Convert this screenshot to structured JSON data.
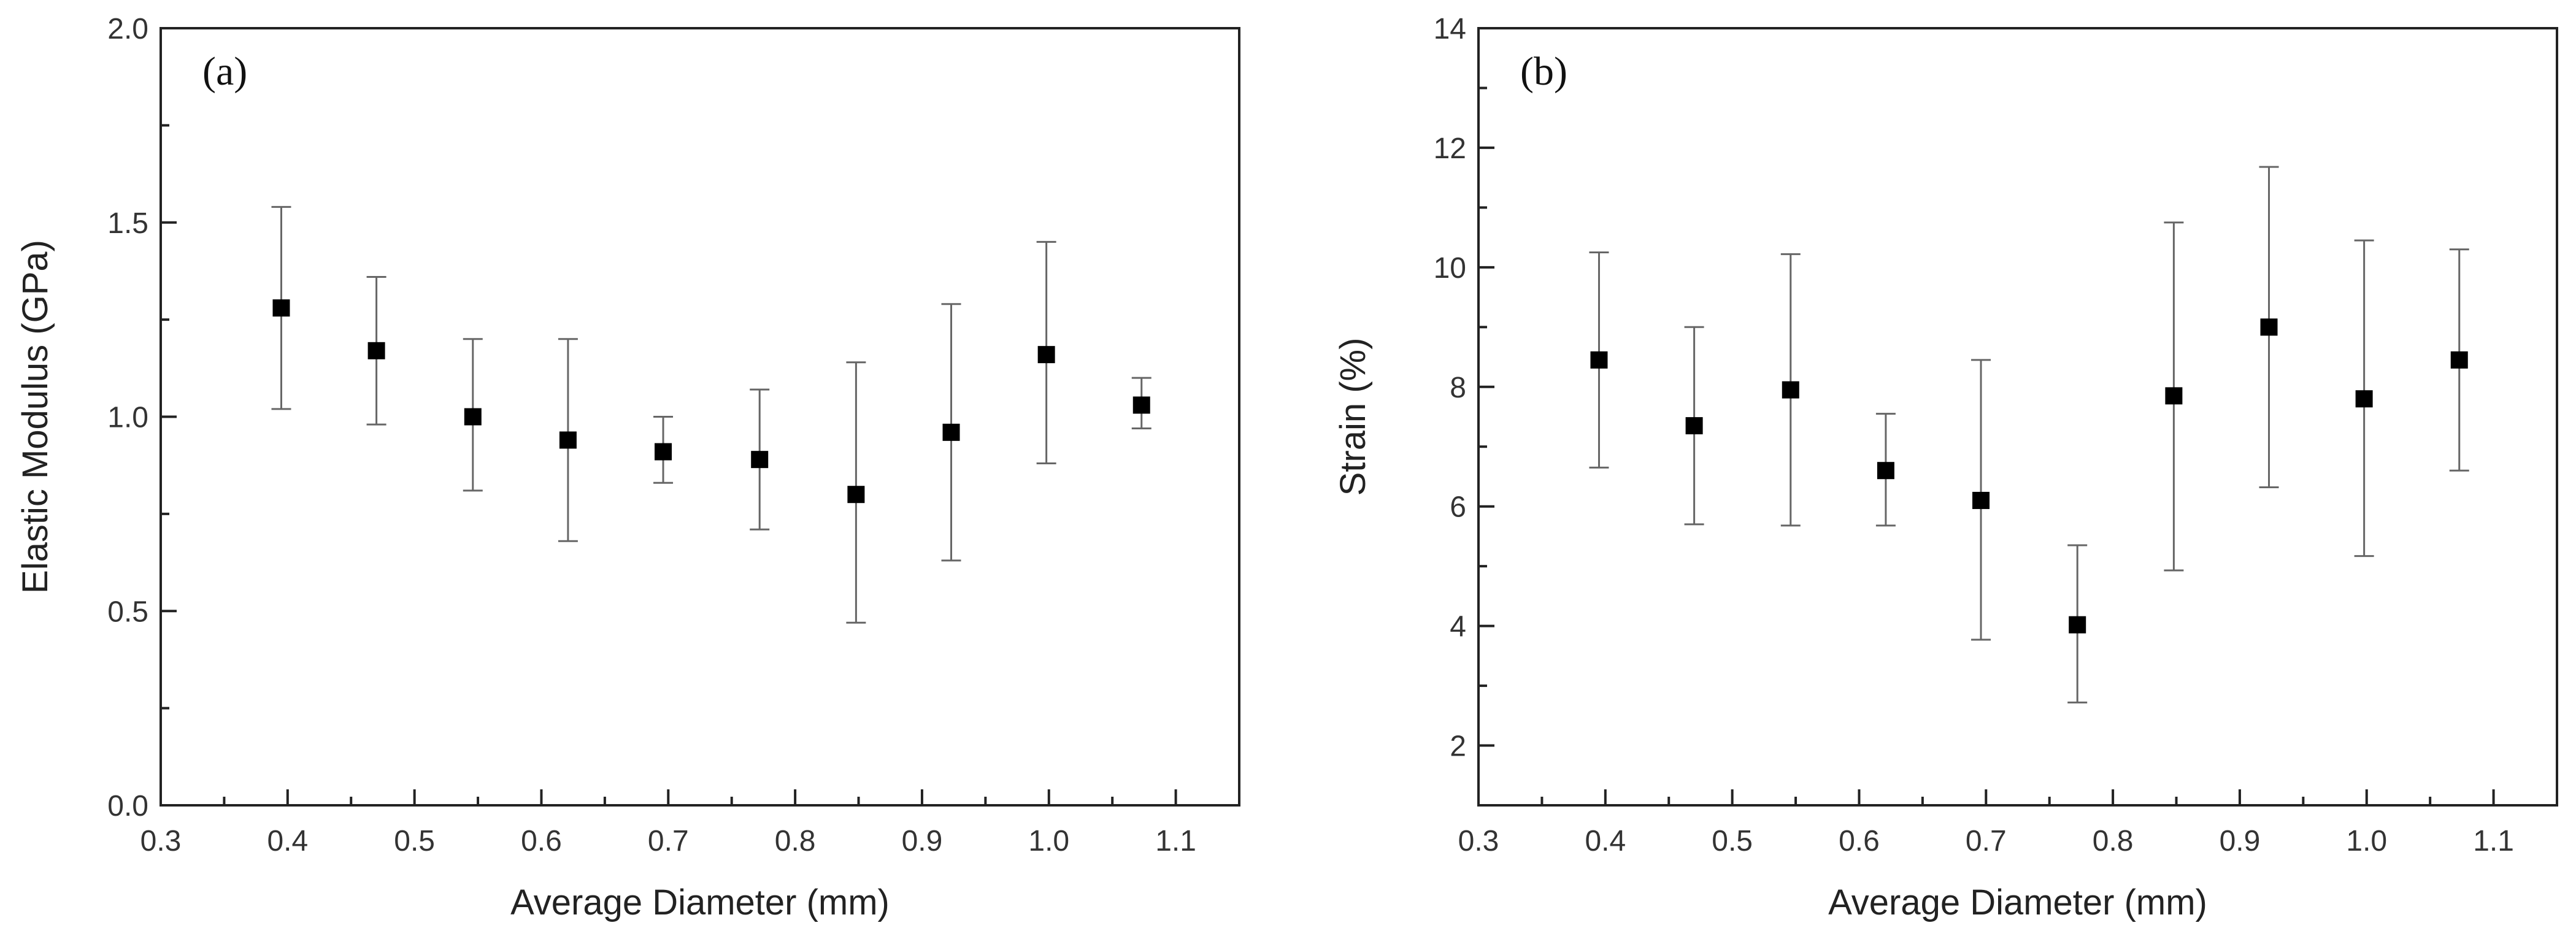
{
  "chart_data": [
    {
      "type": "scatter",
      "panel_label": "(a)",
      "xlabel": "Average Diameter (mm)",
      "ylabel": "Elastic Modulus (GPa)",
      "xlim": [
        0.3,
        1.15
      ],
      "ylim": [
        0.0,
        2.0
      ],
      "xticks": [
        "0.3",
        "0.4",
        "0.5",
        "0.6",
        "0.7",
        "0.8",
        "0.9",
        "1.0",
        "1.1"
      ],
      "yticks": [
        "0.0",
        "0.5",
        "1.0",
        "1.5",
        "2.0"
      ],
      "grid": false,
      "marker_color": "#000000",
      "error_bar_color": "#666666",
      "points": [
        {
          "x": 0.395,
          "y": 1.28,
          "lo": 1.02,
          "hi": 1.54
        },
        {
          "x": 0.47,
          "y": 1.17,
          "lo": 0.98,
          "hi": 1.36
        },
        {
          "x": 0.546,
          "y": 1.0,
          "lo": 0.81,
          "hi": 1.2
        },
        {
          "x": 0.621,
          "y": 0.94,
          "lo": 0.68,
          "hi": 1.2
        },
        {
          "x": 0.696,
          "y": 0.91,
          "lo": 0.83,
          "hi": 1.0
        },
        {
          "x": 0.772,
          "y": 0.89,
          "lo": 0.71,
          "hi": 1.07
        },
        {
          "x": 0.848,
          "y": 0.8,
          "lo": 0.47,
          "hi": 1.14
        },
        {
          "x": 0.923,
          "y": 0.96,
          "lo": 0.63,
          "hi": 1.29
        },
        {
          "x": 0.998,
          "y": 1.16,
          "lo": 0.88,
          "hi": 1.45
        },
        {
          "x": 1.073,
          "y": 1.03,
          "lo": 0.97,
          "hi": 1.1
        }
      ]
    },
    {
      "type": "scatter",
      "panel_label": "(b)",
      "xlabel": "Average Diameter (mm)",
      "ylabel": "Strain (%)",
      "xlim": [
        0.3,
        1.15
      ],
      "ylim": [
        1,
        14
      ],
      "xticks": [
        "0.3",
        "0.4",
        "0.5",
        "0.6",
        "0.7",
        "0.8",
        "0.9",
        "1.0",
        "1.1"
      ],
      "yticks": [
        "2",
        "4",
        "6",
        "8",
        "10",
        "12",
        "14"
      ],
      "grid": false,
      "marker_color": "#000000",
      "error_bar_color": "#666666",
      "points": [
        {
          "x": 0.395,
          "y": 8.45,
          "lo": 6.65,
          "hi": 10.25
        },
        {
          "x": 0.47,
          "y": 7.35,
          "lo": 5.7,
          "hi": 9.0
        },
        {
          "x": 0.546,
          "y": 7.95,
          "lo": 5.68,
          "hi": 10.22
        },
        {
          "x": 0.621,
          "y": 6.6,
          "lo": 5.68,
          "hi": 7.55
        },
        {
          "x": 0.696,
          "y": 6.1,
          "lo": 3.77,
          "hi": 8.45
        },
        {
          "x": 0.772,
          "y": 4.02,
          "lo": 2.72,
          "hi": 5.35
        },
        {
          "x": 0.848,
          "y": 7.85,
          "lo": 4.93,
          "hi": 10.75
        },
        {
          "x": 0.923,
          "y": 9.0,
          "lo": 6.32,
          "hi": 11.68
        },
        {
          "x": 0.998,
          "y": 7.8,
          "lo": 5.17,
          "hi": 10.45
        },
        {
          "x": 1.073,
          "y": 8.45,
          "lo": 6.6,
          "hi": 10.3
        }
      ]
    }
  ]
}
